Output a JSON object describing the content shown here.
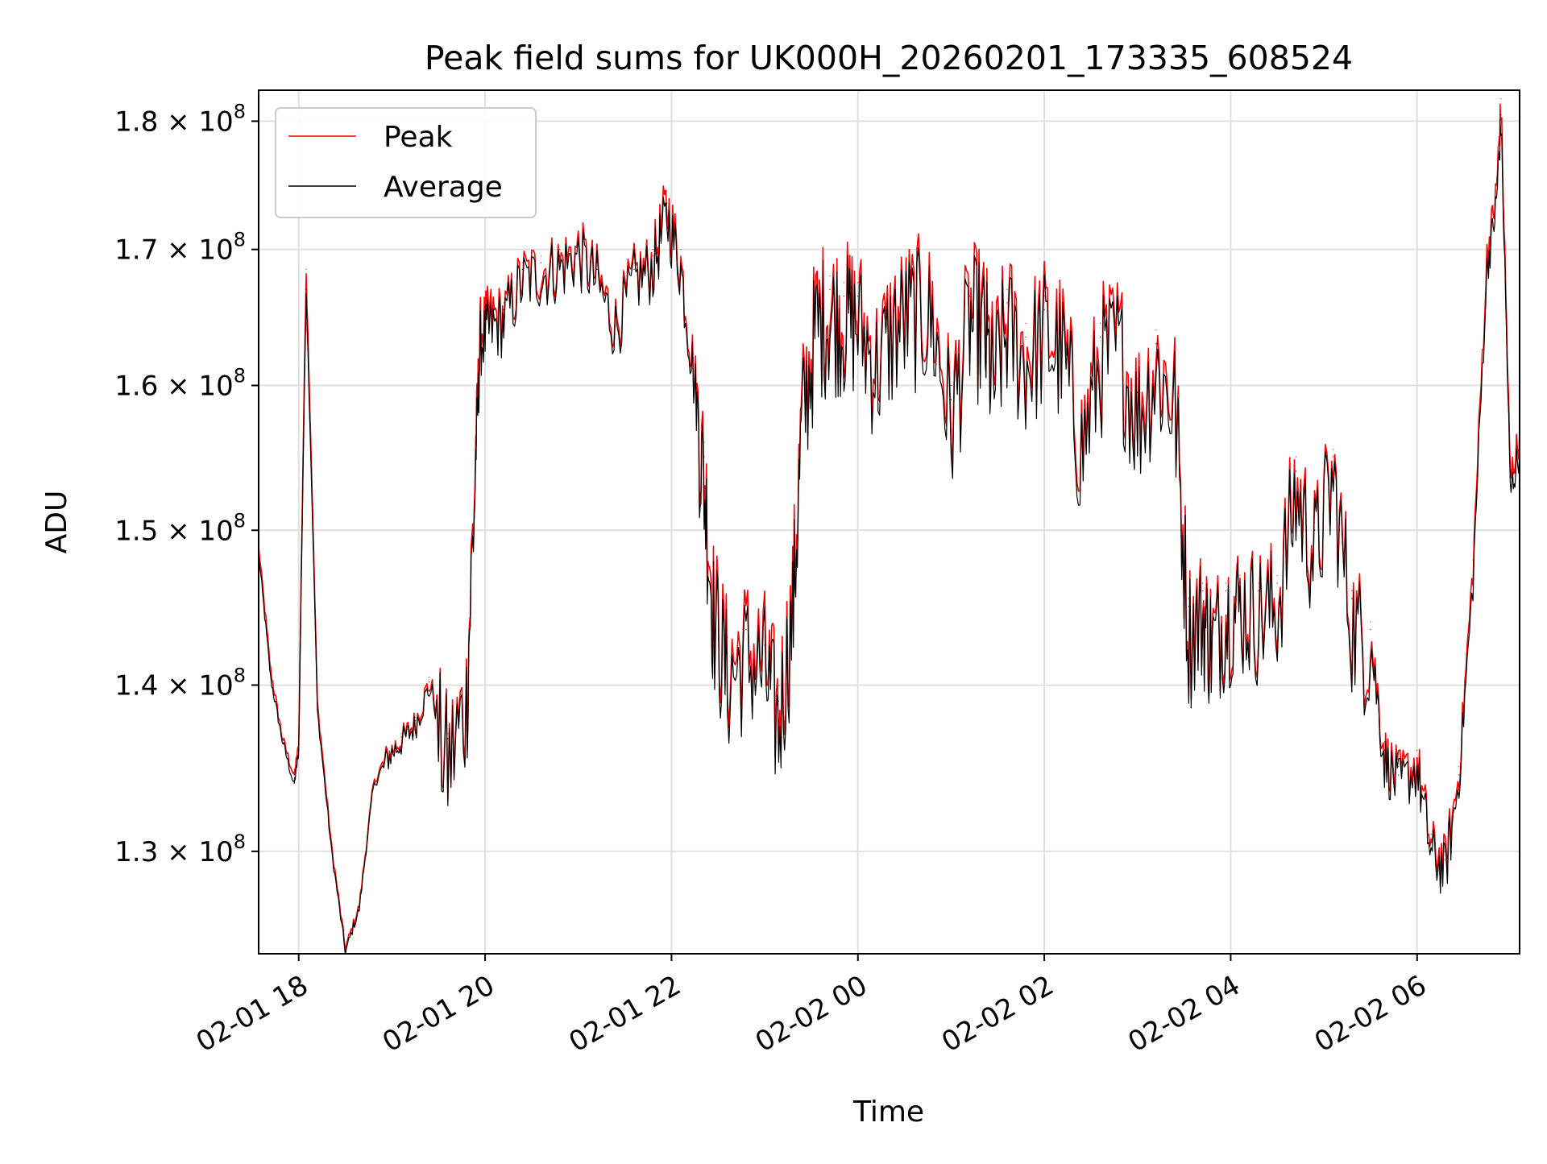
{
  "chart_data": {
    "type": "line",
    "title": "Peak field sums for UK000H_20260201_173335_608524",
    "xlabel": "Time",
    "ylabel": "ADU",
    "yscale": "log",
    "xlim_hours": [
      -0.43,
      13.1
    ],
    "ylim": [
      124200000,
      182500000
    ],
    "x_ticks": [
      {
        "hour": 0,
        "label": "02-01 18"
      },
      {
        "hour": 2,
        "label": "02-01 20"
      },
      {
        "hour": 4,
        "label": "02-01 22"
      },
      {
        "hour": 6,
        "label": "02-02 00"
      },
      {
        "hour": 8,
        "label": "02-02 02"
      },
      {
        "hour": 10,
        "label": "02-02 04"
      },
      {
        "hour": 12,
        "label": "02-02 06"
      }
    ],
    "y_ticks": [
      {
        "value": 130000000,
        "mantissa": "1.3",
        "base": "10",
        "exp": "8"
      },
      {
        "value": 140000000,
        "mantissa": "1.4",
        "base": "10",
        "exp": "8"
      },
      {
        "value": 150000000,
        "mantissa": "1.5",
        "base": "10",
        "exp": "8"
      },
      {
        "value": 160000000,
        "mantissa": "1.6",
        "base": "10",
        "exp": "8"
      },
      {
        "value": 170000000,
        "mantissa": "1.7",
        "base": "10",
        "exp": "8"
      },
      {
        "value": 180000000,
        "mantissa": "1.8",
        "base": "10",
        "exp": "8"
      }
    ],
    "x_hours_from_0201_18": [
      -0.43,
      -0.3,
      -0.18,
      -0.05,
      0.0,
      0.08,
      0.2,
      0.35,
      0.5,
      0.65,
      0.8,
      0.95,
      1.1,
      1.25,
      1.4,
      1.6,
      1.8,
      1.9,
      1.95,
      2.05,
      2.2,
      2.4,
      2.6,
      2.8,
      3.0,
      3.2,
      3.4,
      3.6,
      3.8,
      3.95,
      4.1,
      4.25,
      4.35,
      4.45,
      4.6,
      4.8,
      5.0,
      5.15,
      5.3,
      5.4,
      5.55,
      5.7,
      5.85,
      6.0,
      6.2,
      6.4,
      6.6,
      6.8,
      7.0,
      7.2,
      7.35,
      7.45,
      7.6,
      7.8,
      8.0,
      8.2,
      8.4,
      8.6,
      8.8,
      9.0,
      9.2,
      9.4,
      9.55,
      9.7,
      9.8,
      9.95,
      10.1,
      10.3,
      10.5,
      10.7,
      10.9,
      11.1,
      11.3,
      11.5,
      11.65,
      11.8,
      12.0,
      12.15,
      12.3,
      12.45,
      12.6,
      12.75,
      12.85,
      12.9,
      13.0,
      13.1
    ],
    "series": [
      {
        "name": "Peak",
        "color": "#ff0000",
        "values": [
          149000000,
          141000000,
          137000000,
          134500000,
          136500000,
          168500000,
          139000000,
          130500000,
          124600000,
          127000000,
          134000000,
          136000000,
          137000000,
          138000000,
          140500000,
          137000000,
          141000000,
          157000000,
          165000000,
          166000000,
          166000000,
          169000000,
          169500000,
          170000000,
          171000000,
          169000000,
          165500000,
          169000000,
          170000000,
          174500000,
          170000000,
          161500000,
          156000000,
          147000000,
          143000000,
          144500000,
          143500000,
          140000000,
          147000000,
          160000000,
          167000000,
          168000000,
          167500000,
          167500000,
          164000000,
          167000000,
          168000000,
          167500000,
          160000000,
          167500000,
          167000000,
          163000000,
          167000000,
          164500000,
          166500000,
          165000000,
          158000000,
          164500000,
          165500000,
          160500000,
          164000000,
          161500000,
          145500000,
          146500000,
          144500000,
          146500000,
          147000000,
          146500000,
          147000000,
          155000000,
          150500000,
          155500000,
          146000000,
          144000000,
          136500000,
          135000000,
          136000000,
          131000000,
          130000000,
          135000000,
          148000000,
          170000000,
          175000000,
          181800000,
          154000000,
          157000000
        ]
      },
      {
        "name": "Average",
        "color": "#000000",
        "values": [
          148500000,
          140500000,
          136800000,
          134000000,
          136000000,
          167000000,
          138500000,
          130200000,
          124400000,
          126800000,
          133800000,
          135800000,
          136800000,
          137800000,
          140200000,
          136700000,
          140500000,
          156000000,
          164000000,
          165000000,
          165500000,
          168500000,
          169000000,
          169500000,
          170500000,
          168500000,
          165000000,
          168500000,
          169500000,
          173500000,
          169500000,
          161000000,
          155000000,
          146000000,
          142000000,
          143500000,
          142500000,
          139000000,
          146000000,
          159000000,
          166000000,
          167000000,
          166500000,
          166500000,
          163000000,
          166000000,
          167000000,
          166500000,
          159000000,
          166500000,
          166000000,
          162000000,
          166000000,
          163500000,
          165500000,
          164000000,
          157000000,
          163500000,
          164500000,
          159500000,
          163000000,
          160500000,
          145000000,
          146000000,
          144000000,
          146000000,
          146500000,
          146000000,
          146500000,
          154000000,
          150000000,
          155000000,
          145500000,
          143500000,
          136000000,
          134500000,
          135500000,
          130500000,
          129500000,
          134500000,
          147000000,
          169000000,
          174000000,
          180500000,
          153000000,
          156000000
        ]
      }
    ]
  }
}
